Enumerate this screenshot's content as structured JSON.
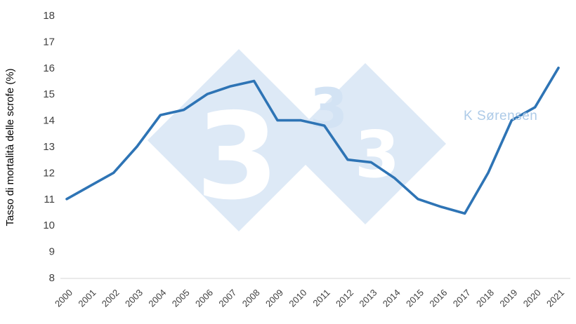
{
  "chart_data": {
    "type": "line",
    "title": "",
    "xlabel": "",
    "ylabel": "Tasso di mortalità delle scrofe (%)",
    "ylim": [
      8,
      18
    ],
    "ytick_step": 1,
    "grid": false,
    "legend": "none",
    "categories": [
      "2000",
      "2001",
      "2002",
      "2003",
      "2004",
      "2005",
      "2006",
      "2007",
      "2008",
      "2009",
      "2010",
      "2011",
      "2012",
      "2013",
      "2014",
      "2015",
      "2016",
      "2017",
      "2018",
      "2019",
      "2020",
      "2021"
    ],
    "series": [
      {
        "name": "Tasso di mortalità delle scrofe (%)",
        "values": [
          11,
          11.5,
          12,
          13,
          14.2,
          14.4,
          15,
          15.3,
          15.5,
          14,
          14,
          13.8,
          12.5,
          12.4,
          11.8,
          11,
          10.7,
          10.45,
          12,
          14,
          14.5,
          16
        ]
      }
    ],
    "line_color": "#2e74b5",
    "axis_line_color": "#d6d6d6"
  },
  "watermark": {
    "annotation": "K Sørensen",
    "annotation_color": "#aecbe8",
    "diamond_color": "#dde9f6",
    "three_on_diamond_color": "#ffffff",
    "three_on_white_color": "#d3e3f4",
    "threes": [
      "3",
      "3",
      "3"
    ]
  }
}
